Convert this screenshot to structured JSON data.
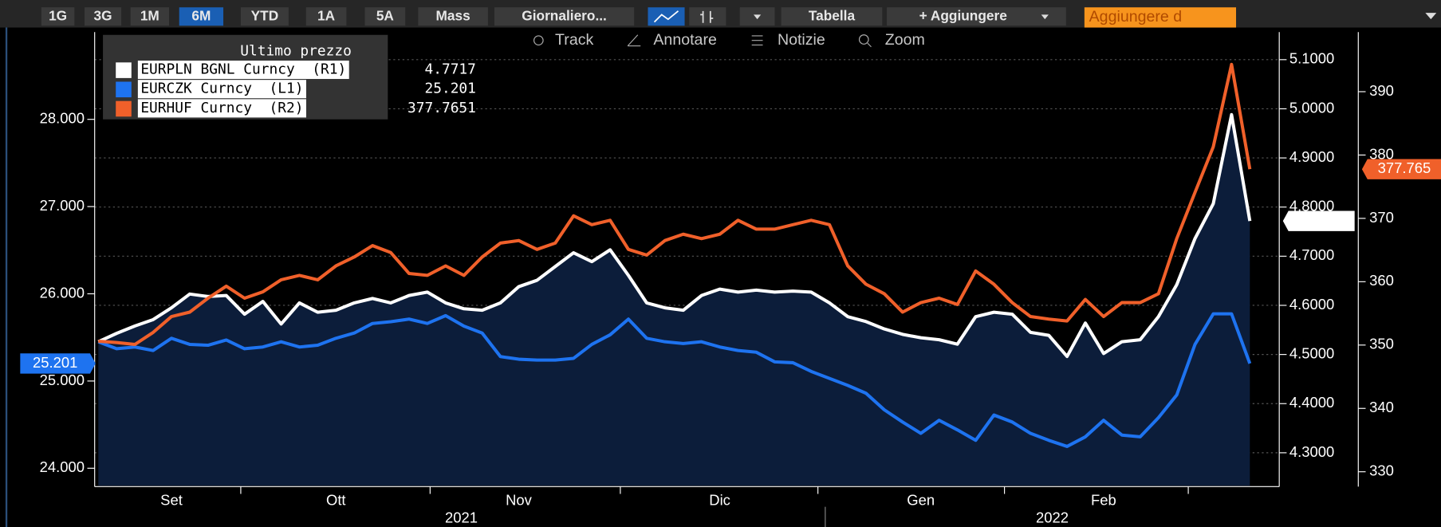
{
  "toolbar": {
    "ranges": [
      "1G",
      "3G",
      "1M",
      "6M",
      "YTD",
      "1A",
      "5A",
      "Mass"
    ],
    "active_range": "6M",
    "frequency": "Giornaliero...",
    "table": "Tabella",
    "add": "+ Aggiungere",
    "input": "Aggiungere d",
    "tools": [
      "Track",
      "Annotare",
      "Notizie",
      "Zoom"
    ]
  },
  "chart_data": {
    "type": "line",
    "legend_title": "Ultimo prezzo",
    "legend": "top-left",
    "categories": [
      null,
      null,
      null,
      null,
      "Set",
      null,
      null,
      null,
      null,
      null,
      null,
      null,
      null,
      "Ott",
      null,
      null,
      null,
      null,
      null,
      null,
      null,
      null,
      null,
      "Nov",
      null,
      null,
      null,
      null,
      null,
      null,
      null,
      null,
      null,
      null,
      "Dic",
      null,
      null,
      null,
      null,
      null,
      null,
      null,
      null,
      null,
      null,
      "Gen",
      null,
      null,
      null,
      null,
      null,
      null,
      null,
      null,
      null,
      "Feb",
      null,
      null,
      null,
      null,
      null,
      null,
      null,
      null
    ],
    "years": [
      "2021",
      "2022"
    ],
    "ylim": [
      23.8,
      29.0
    ],
    "yticks": [
      {
        "value": 24,
        "label": "24.000"
      },
      {
        "value": 25,
        "label": "25.000"
      },
      {
        "value": 26,
        "label": "26.000"
      },
      {
        "value": 27,
        "label": "27.000"
      },
      {
        "value": 28,
        "label": "28.000"
      }
    ],
    "y2lim": [
      4.233,
      5.156
    ],
    "y2ticks": [
      {
        "value": 4.3,
        "label": "4.3000"
      },
      {
        "value": 4.4,
        "label": "4.4000"
      },
      {
        "value": 4.5,
        "label": "4.5000"
      },
      {
        "value": 4.6,
        "label": "4.6000"
      },
      {
        "value": 4.7,
        "label": "4.7000"
      },
      {
        "value": 4.8,
        "label": "4.8000"
      },
      {
        "value": 4.9,
        "label": "4.9000"
      },
      {
        "value": 5.0,
        "label": "5.0000"
      },
      {
        "value": 5.1,
        "label": "5.1000"
      }
    ],
    "y3lim": [
      327.8,
      399.4
    ],
    "y3ticks": [
      330,
      340,
      350,
      360,
      370,
      380,
      390
    ],
    "grid": "y2",
    "series": [
      {
        "name": "EURPLN BGNL Curncy  (R1)",
        "axis": "y2",
        "color": "#ffffff",
        "area_color": "#0c1d3a",
        "values": [
          4.526,
          4.543,
          4.558,
          4.571,
          4.595,
          4.623,
          4.618,
          4.62,
          4.582,
          4.608,
          4.562,
          4.605,
          4.586,
          4.59,
          4.605,
          4.614,
          4.605,
          4.62,
          4.627,
          4.605,
          4.593,
          4.59,
          4.605,
          4.638,
          4.651,
          4.679,
          4.707,
          4.689,
          4.713,
          4.661,
          4.605,
          4.595,
          4.59,
          4.62,
          4.633,
          4.627,
          4.631,
          4.627,
          4.629,
          4.627,
          4.605,
          4.577,
          4.567,
          4.552,
          4.541,
          4.534,
          4.53,
          4.521,
          4.577,
          4.586,
          4.582,
          4.545,
          4.539,
          4.496,
          4.564,
          4.502,
          4.526,
          4.53,
          4.577,
          4.642,
          4.736,
          4.807,
          4.988,
          4.7717
        ]
      },
      {
        "name": "EURCZK Curncy  (L1)",
        "axis": "y",
        "color": "#1e73f0",
        "values": [
          25.45,
          25.37,
          25.39,
          25.35,
          25.49,
          25.42,
          25.41,
          25.47,
          25.37,
          25.39,
          25.45,
          25.39,
          25.41,
          25.49,
          25.55,
          25.66,
          25.68,
          25.71,
          25.66,
          25.75,
          25.63,
          25.55,
          25.28,
          25.25,
          25.24,
          25.24,
          25.26,
          25.42,
          25.53,
          25.71,
          25.49,
          25.45,
          25.43,
          25.45,
          25.39,
          25.35,
          25.33,
          25.22,
          25.21,
          25.11,
          25.03,
          24.95,
          24.86,
          24.67,
          24.53,
          24.4,
          24.55,
          24.44,
          24.32,
          24.61,
          24.53,
          24.4,
          24.32,
          24.25,
          24.36,
          24.55,
          24.38,
          24.36,
          24.58,
          24.84,
          25.42,
          25.77,
          25.77,
          25.201
        ]
      },
      {
        "name": "EURHUF Curncy  (R2)",
        "axis": "y3",
        "color": "#f0602a",
        "current_label": "377.765",
        "values": [
          350.6,
          350.4,
          350.1,
          352.0,
          354.5,
          355.2,
          357.4,
          359.3,
          357.4,
          358.4,
          360.3,
          361.0,
          360.3,
          362.5,
          363.9,
          365.7,
          364.6,
          361.3,
          361.0,
          362.5,
          361.0,
          363.9,
          366.1,
          366.5,
          365.1,
          366.1,
          370.4,
          369.0,
          369.7,
          365.1,
          364.2,
          366.5,
          367.5,
          366.8,
          367.5,
          369.7,
          368.3,
          368.3,
          369.0,
          369.7,
          369.0,
          362.5,
          359.6,
          358.1,
          355.2,
          356.7,
          357.4,
          356.4,
          361.7,
          359.6,
          356.7,
          354.5,
          354.1,
          353.8,
          357.2,
          354.5,
          356.7,
          356.7,
          358.1,
          366.8,
          374.1,
          381.3,
          394.3,
          377.7651
        ]
      }
    ]
  }
}
